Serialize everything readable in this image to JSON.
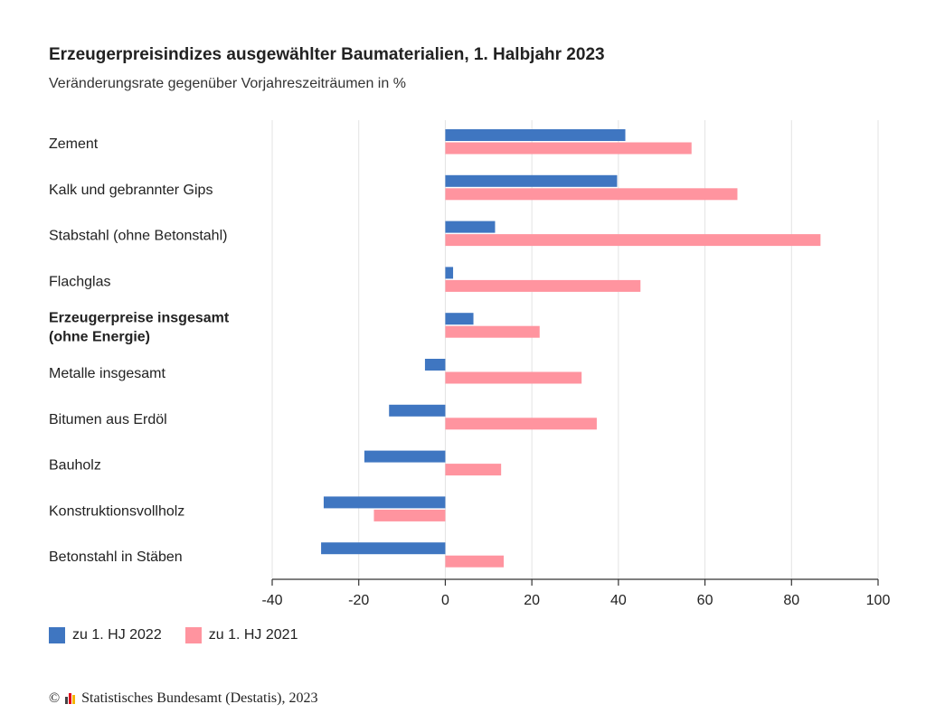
{
  "header": {
    "title": "Erzeugerpreisindizes ausgewählter Baumaterialien, 1. Halbjahr 2023",
    "subtitle": "Veränderungsrate gegenüber Vorjahreszeiträumen in %"
  },
  "chart_data": {
    "type": "bar",
    "orientation": "horizontal",
    "categories": [
      "Zement",
      "Kalk und gebrannter Gips",
      "Stabstahl (ohne Betonstahl)",
      "Flachglas",
      "Erzeugerpreise insgesamt (ohne Energie)",
      "Metalle insgesamt",
      "Bitumen aus Erdöl",
      "Bauholz",
      "Konstruktionsvollholz",
      "Betonstahl in Stäben"
    ],
    "category_lines": [
      [
        "Zement"
      ],
      [
        "Kalk und gebrannter Gips"
      ],
      [
        "Stabstahl (ohne Betonstahl)"
      ],
      [
        "Flachglas"
      ],
      [
        "Erzeugerpreise insgesamt",
        "(ohne Energie)"
      ],
      [
        "Metalle insgesamt"
      ],
      [
        "Bitumen aus Erdöl"
      ],
      [
        "Bauholz"
      ],
      [
        "Konstruktionsvollholz"
      ],
      [
        "Betonstahl in Stäben"
      ]
    ],
    "bold_categories": [
      4
    ],
    "series": [
      {
        "name": "zu 1. HJ 2022",
        "color": "#3f76c1",
        "values": [
          41.6,
          39.7,
          11.5,
          1.8,
          6.5,
          -4.7,
          -13.0,
          -18.7,
          -28.1,
          -28.7
        ]
      },
      {
        "name": "zu 1. HJ 2021",
        "color": "#ff949f",
        "values": [
          56.9,
          67.5,
          86.7,
          45.1,
          21.8,
          31.5,
          35.0,
          12.9,
          -16.5,
          13.5
        ]
      }
    ],
    "xlim": [
      -40,
      100
    ],
    "xticks": [
      -40,
      -20,
      0,
      20,
      40,
      60,
      80,
      100
    ],
    "grid": true,
    "legend_position": "bottom-left"
  },
  "footer": {
    "copyright_symbol": "©",
    "text": "Statistisches Bundesamt (Destatis), 2023"
  }
}
